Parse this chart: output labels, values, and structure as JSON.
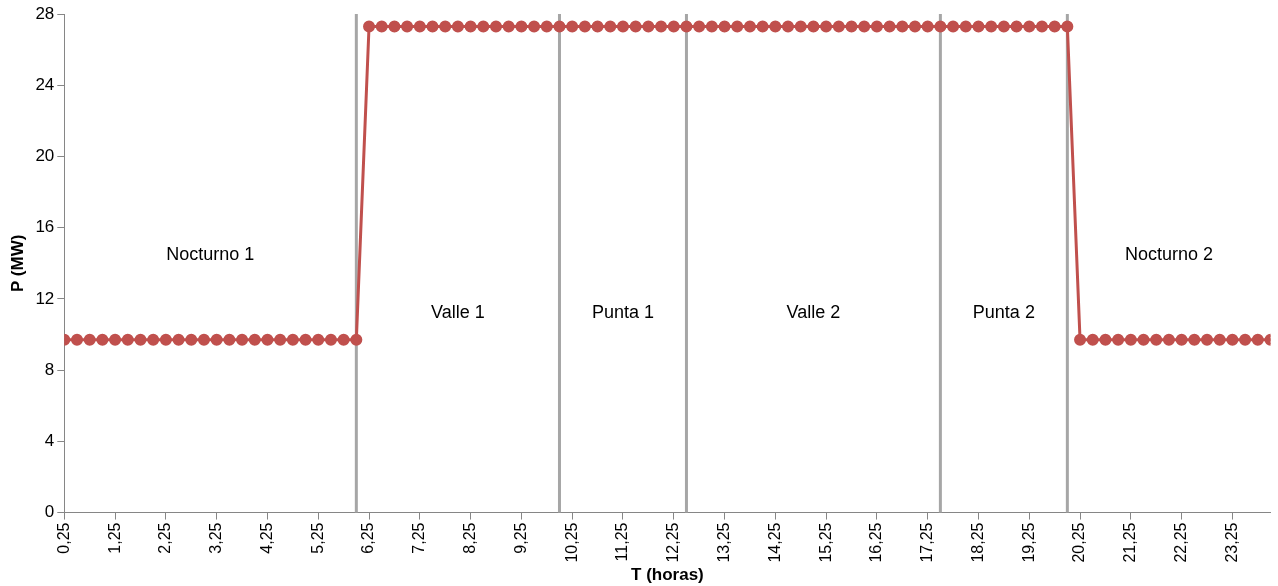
{
  "chart_data": {
    "type": "line",
    "xlabel": "T (horas)",
    "ylabel": "P (MW)",
    "x": [
      0.25,
      0.5,
      0.75,
      1,
      1.25,
      1.5,
      1.75,
      2,
      2.25,
      2.5,
      2.75,
      3,
      3.25,
      3.5,
      3.75,
      4,
      4.25,
      4.5,
      4.75,
      5,
      5.25,
      5.5,
      5.75,
      6,
      6.25,
      6.5,
      6.75,
      7,
      7.25,
      7.5,
      7.75,
      8,
      8.25,
      8.5,
      8.75,
      9,
      9.25,
      9.5,
      9.75,
      10,
      10.25,
      10.5,
      10.75,
      11,
      11.25,
      11.5,
      11.75,
      12,
      12.25,
      12.5,
      12.75,
      13,
      13.25,
      13.5,
      13.75,
      14,
      14.25,
      14.5,
      14.75,
      15,
      15.25,
      15.5,
      15.75,
      16,
      16.25,
      16.5,
      16.75,
      17,
      17.25,
      17.5,
      17.75,
      18,
      18.25,
      18.5,
      18.75,
      19,
      19.25,
      19.5,
      19.75,
      20,
      20.25,
      20.5,
      20.75,
      21,
      21.25,
      21.5,
      21.75,
      22,
      22.25,
      22.5,
      22.75,
      23,
      23.25,
      23.5,
      23.75,
      24
    ],
    "series": [
      {
        "color": "#c0504d",
        "values": [
          9.7,
          9.7,
          9.7,
          9.7,
          9.7,
          9.7,
          9.7,
          9.7,
          9.7,
          9.7,
          9.7,
          9.7,
          9.7,
          9.7,
          9.7,
          9.7,
          9.7,
          9.7,
          9.7,
          9.7,
          9.7,
          9.7,
          9.7,
          9.7,
          27.3,
          27.3,
          27.3,
          27.3,
          27.3,
          27.3,
          27.3,
          27.3,
          27.3,
          27.3,
          27.3,
          27.3,
          27.3,
          27.3,
          27.3,
          27.3,
          27.3,
          27.3,
          27.3,
          27.3,
          27.3,
          27.3,
          27.3,
          27.3,
          27.3,
          27.3,
          27.3,
          27.3,
          27.3,
          27.3,
          27.3,
          27.3,
          27.3,
          27.3,
          27.3,
          27.3,
          27.3,
          27.3,
          27.3,
          27.3,
          27.3,
          27.3,
          27.3,
          27.3,
          27.3,
          27.3,
          27.3,
          27.3,
          27.3,
          27.3,
          27.3,
          27.3,
          27.3,
          27.3,
          27.3,
          27.3,
          9.7,
          9.7,
          9.7,
          9.7,
          9.7,
          9.7,
          9.7,
          9.7,
          9.7,
          9.7,
          9.7,
          9.7,
          9.7,
          9.7,
          9.7,
          9.7
        ]
      }
    ],
    "xlim": [
      0.25,
      24
    ],
    "ylim": [
      0,
      28
    ],
    "yticks": [
      0,
      4,
      8,
      12,
      16,
      20,
      24,
      28
    ],
    "xticks": [
      {
        "value": 0.25,
        "label": "0,25"
      },
      {
        "value": 1.25,
        "label": "1,25"
      },
      {
        "value": 2.25,
        "label": "2,25"
      },
      {
        "value": 3.25,
        "label": "3,25"
      },
      {
        "value": 4.25,
        "label": "4,25"
      },
      {
        "value": 5.25,
        "label": "5,25"
      },
      {
        "value": 6.25,
        "label": "6,25"
      },
      {
        "value": 7.25,
        "label": "7,25"
      },
      {
        "value": 8.25,
        "label": "8,25"
      },
      {
        "value": 9.25,
        "label": "9,25"
      },
      {
        "value": 10.25,
        "label": "10,25"
      },
      {
        "value": 11.25,
        "label": "11,25"
      },
      {
        "value": 12.25,
        "label": "12,25"
      },
      {
        "value": 13.25,
        "label": "13,25"
      },
      {
        "value": 14.25,
        "label": "14,25"
      },
      {
        "value": 15.25,
        "label": "15,25"
      },
      {
        "value": 16.25,
        "label": "16,25"
      },
      {
        "value": 17.25,
        "label": "17,25"
      },
      {
        "value": 18.25,
        "label": "18,25"
      },
      {
        "value": 19.25,
        "label": "19,25"
      },
      {
        "value": 20.25,
        "label": "20,25"
      },
      {
        "value": 21.25,
        "label": "21,25"
      },
      {
        "value": 22.25,
        "label": "22,25"
      },
      {
        "value": 23.25,
        "label": "23,25"
      }
    ],
    "ref_lines": [
      {
        "axis": "x",
        "value": 6,
        "color": "#a6a6a6"
      },
      {
        "axis": "x",
        "value": 10,
        "color": "#a6a6a6"
      },
      {
        "axis": "x",
        "value": 12.5,
        "color": "#a6a6a6"
      },
      {
        "axis": "x",
        "value": 17.5,
        "color": "#a6a6a6"
      },
      {
        "axis": "x",
        "value": 20,
        "color": "#a6a6a6"
      }
    ],
    "annotations": [
      "Nocturno 1",
      "Valle 1",
      "Punta 1",
      "Valle 2",
      "Punta 2",
      "Nocturno 2"
    ],
    "marker": "circle",
    "line_style": "solid",
    "grid": false,
    "legend": false
  }
}
